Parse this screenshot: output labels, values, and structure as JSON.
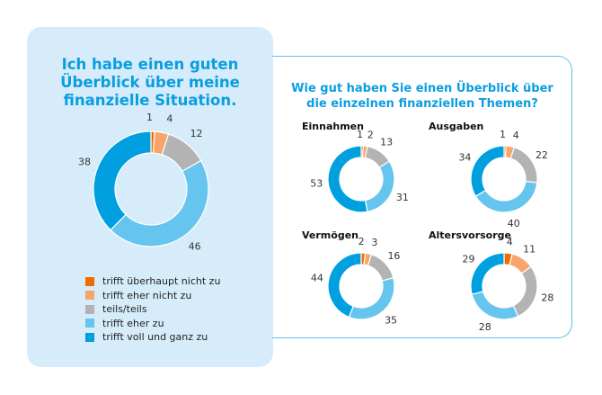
{
  "colors": {
    "trifft_ueberhaupt_nicht_zu": "#f06c00",
    "trifft_eher_nicht_zu": "#f7a56a",
    "teils_teils": "#b3b3b3",
    "trifft_eher_zu": "#66c5ee",
    "trifft_voll_und_ganz_zu": "#009fe0",
    "title": "#0a9ee0",
    "panel_bg": "#d6ecfa",
    "frame_border": "#5fc0ee"
  },
  "left_title": [
    "Ich habe einen guten",
    "Überblick über meine",
    "finanzielle Situation."
  ],
  "right_title": [
    "Wie gut haben Sie einen Überblick über",
    "die einzelnen finanziellen Themen?"
  ],
  "legend": [
    {
      "label": "trifft überhaupt nicht zu",
      "key": "trifft_ueberhaupt_nicht_zu"
    },
    {
      "label": "trifft eher nicht zu",
      "key": "trifft_eher_nicht_zu"
    },
    {
      "label": "teils/teils",
      "key": "teils_teils"
    },
    {
      "label": "trifft eher zu",
      "key": "trifft_eher_zu"
    },
    {
      "label": "trifft voll und ganz zu",
      "key": "trifft_voll_und_ganz_zu"
    }
  ],
  "chart_data": [
    {
      "type": "pie",
      "title": "Ich habe einen guten Überblick über meine finanzielle Situation.",
      "categories": [
        "trifft überhaupt nicht zu",
        "trifft eher nicht zu",
        "teils/teils",
        "trifft eher zu",
        "trifft voll und ganz zu"
      ],
      "values": [
        1,
        4,
        12,
        46,
        38
      ],
      "unit": "%",
      "donut": true
    },
    {
      "type": "pie",
      "title": "Einnahmen",
      "categories": [
        "trifft überhaupt nicht zu",
        "trifft eher nicht zu",
        "teils/teils",
        "trifft eher zu",
        "trifft voll und ganz zu"
      ],
      "values": [
        1,
        2,
        13,
        31,
        53
      ],
      "unit": "%",
      "donut": true
    },
    {
      "type": "pie",
      "title": "Ausgaben",
      "categories": [
        "trifft überhaupt nicht zu",
        "trifft eher nicht zu",
        "teils/teils",
        "trifft eher zu",
        "trifft voll und ganz zu"
      ],
      "values": [
        1,
        4,
        22,
        40,
        34
      ],
      "unit": "%",
      "donut": true
    },
    {
      "type": "pie",
      "title": "Vermögen",
      "categories": [
        "trifft überhaupt nicht zu",
        "trifft eher nicht zu",
        "teils/teils",
        "trifft eher zu",
        "trifft voll und ganz zu"
      ],
      "values": [
        2,
        3,
        16,
        35,
        44
      ],
      "unit": "%",
      "donut": true
    },
    {
      "type": "pie",
      "title": "Altersvorsorge",
      "categories": [
        "trifft überhaupt nicht zu",
        "trifft eher nicht zu",
        "teils/teils",
        "trifft eher zu",
        "trifft voll und ganz zu"
      ],
      "values": [
        4,
        11,
        28,
        28,
        29
      ],
      "unit": "%",
      "donut": true
    }
  ]
}
